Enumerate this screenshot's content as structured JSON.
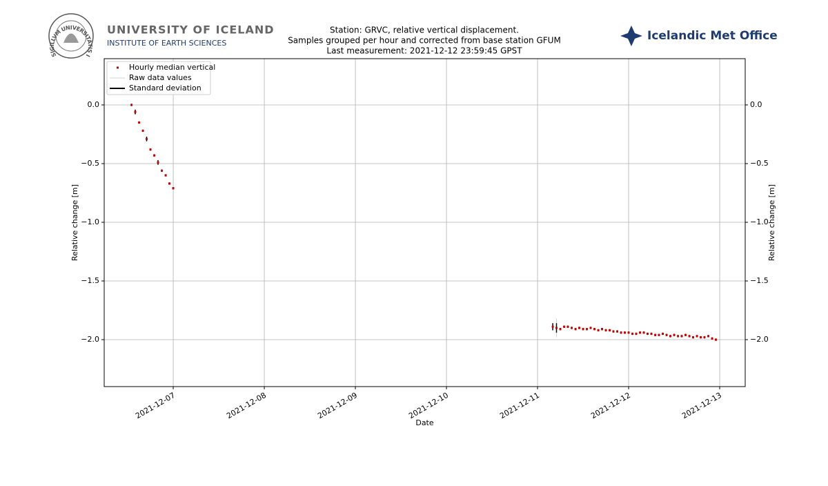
{
  "header": {
    "seal": "SIGILLVM UNIVERSITATIS ISLANDIAE",
    "university": "UNIVERSITY OF ICELAND",
    "institute": "INSTITUTE OF EARTH SCIENCES",
    "met_office": "Icelandic Met Office"
  },
  "chart_data": {
    "type": "scatter",
    "title": [
      "Station: GRVC, relative vertical displacement.",
      "Samples grouped per hour and corrected from base station GFUM",
      "Last measurement: 2021-12-12 23:59:45 GPST"
    ],
    "x_label": "Date",
    "y_label": "Relative change [m]",
    "xlim": [
      6.242,
      13.28
    ],
    "xticks": [
      {
        "value": 7,
        "label": "2021-12-07"
      },
      {
        "value": 8,
        "label": "2021-12-08"
      },
      {
        "value": 9,
        "label": "2021-12-09"
      },
      {
        "value": 10,
        "label": "2021-12-10"
      },
      {
        "value": 11,
        "label": "2021-12-11"
      },
      {
        "value": 12,
        "label": "2021-12-12"
      },
      {
        "value": 13,
        "label": "2021-12-13"
      }
    ],
    "ylim": [
      -2.4,
      0.394
    ],
    "yticks": [
      {
        "value": 0,
        "label": "0.0"
      },
      {
        "value": -0.5,
        "label": "−0.5"
      },
      {
        "value": -1,
        "label": "−1.0"
      },
      {
        "value": -1.5,
        "label": "−1.5"
      },
      {
        "value": -2,
        "label": "−2.0"
      }
    ],
    "grid": true,
    "legend": "upper left",
    "series": [
      {
        "name": "Hourly median vertical",
        "color": "#cc0000",
        "error_name": "Standard deviation",
        "error_color": "#000000",
        "x": [
          6.542,
          6.583,
          6.625,
          6.667,
          6.708,
          6.75,
          6.792,
          6.833,
          6.875,
          6.917,
          6.958,
          7.0,
          11.167,
          11.208,
          11.25,
          11.292,
          11.333,
          11.375,
          11.417,
          11.458,
          11.5,
          11.542,
          11.583,
          11.625,
          11.667,
          11.708,
          11.75,
          11.792,
          11.833,
          11.875,
          11.917,
          11.958,
          12.0,
          12.042,
          12.083,
          12.125,
          12.167,
          12.208,
          12.25,
          12.292,
          12.333,
          12.375,
          12.417,
          12.458,
          12.5,
          12.542,
          12.583,
          12.625,
          12.667,
          12.708,
          12.75,
          12.792,
          12.833,
          12.875,
          12.917,
          12.958
        ],
        "values": [
          0,
          -0.06,
          -0.15,
          -0.22,
          -0.29,
          -0.38,
          -0.43,
          -0.49,
          -0.56,
          -0.6,
          -0.67,
          -0.71,
          -1.89,
          -1.9,
          -1.91,
          -1.89,
          -1.89,
          -1.9,
          -1.91,
          -1.9,
          -1.91,
          -1.91,
          -1.9,
          -1.91,
          -1.92,
          -1.91,
          -1.92,
          -1.92,
          -1.93,
          -1.93,
          -1.94,
          -1.94,
          -1.94,
          -1.95,
          -1.95,
          -1.94,
          -1.94,
          -1.95,
          -1.95,
          -1.96,
          -1.96,
          -1.95,
          -1.96,
          -1.97,
          -1.96,
          -1.97,
          -1.97,
          -1.96,
          -1.97,
          -1.98,
          -1.97,
          -1.98,
          -1.98,
          -1.97,
          -1.99,
          -2.0
        ],
        "errors": [
          0.01,
          0.02,
          0.01,
          0.01,
          0.02,
          0.01,
          0.01,
          0.02,
          0.01,
          0.01,
          0.01,
          0.01,
          0.03,
          0.04,
          0.01,
          0.01,
          0.01,
          0.01,
          0.01,
          0.01,
          0.01,
          0.01,
          0.01,
          0.01,
          0.01,
          0.01,
          0.01,
          0.01,
          0.01,
          0.01,
          0.01,
          0.01,
          0.01,
          0.01,
          0.01,
          0.01,
          0.01,
          0.01,
          0.01,
          0.01,
          0.01,
          0.01,
          0.01,
          0.01,
          0.01,
          0.01,
          0.01,
          0.01,
          0.01,
          0.01,
          0.01,
          0.01,
          0.01,
          0.01,
          0.01,
          0.01
        ]
      },
      {
        "name": "Raw data values",
        "color": "#d3d3d3",
        "x": [
          11.208,
          11.208
        ],
        "values": [
          -1.82,
          -1.98
        ]
      }
    ]
  }
}
